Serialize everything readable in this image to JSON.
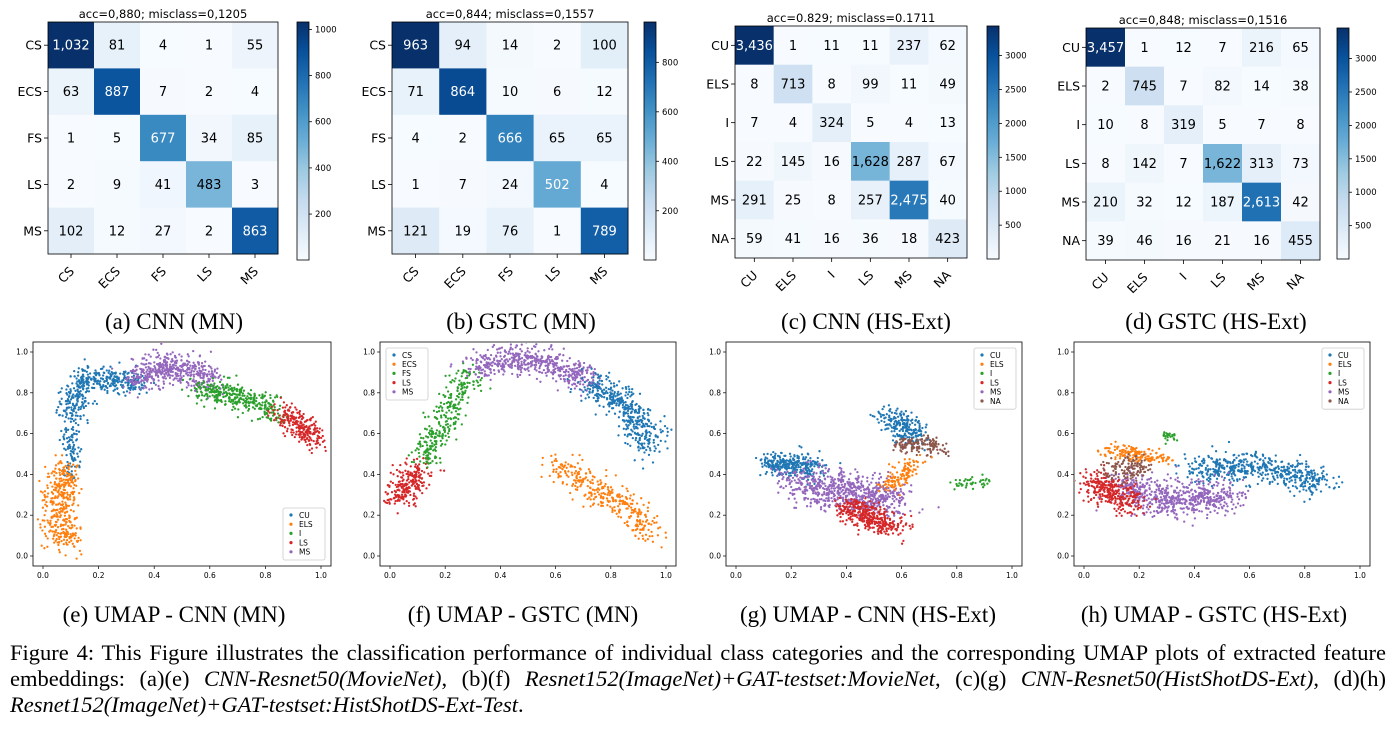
{
  "colors": {
    "cmap_low": "#f7fbff",
    "cmap_high": "#08306b",
    "series": [
      "#1f77b4",
      "#ff7f0e",
      "#2ca02c",
      "#d62728",
      "#9467bd",
      "#8c564b"
    ]
  },
  "confusion_matrices": [
    {
      "id": "a",
      "title": "acc=0,880; misclass=0,1205",
      "labels": [
        "CS",
        "ECS",
        "FS",
        "LS",
        "MS"
      ],
      "matrix": [
        [
          1032,
          81,
          4,
          1,
          55
        ],
        [
          63,
          887,
          7,
          2,
          4
        ],
        [
          1,
          5,
          677,
          34,
          85
        ],
        [
          2,
          9,
          41,
          483,
          3
        ],
        [
          102,
          12,
          27,
          2,
          863
        ]
      ],
      "cell_text": [
        [
          "1,032",
          "81",
          "4",
          "1",
          "55"
        ],
        [
          "63",
          "887",
          "7",
          "2",
          "4"
        ],
        [
          "1",
          "5",
          "677",
          "34",
          "85"
        ],
        [
          "2",
          "9",
          "41",
          "483",
          "3"
        ],
        [
          "102",
          "12",
          "27",
          "2",
          "863"
        ]
      ],
      "colorbar_ticks": [
        200,
        400,
        600,
        800,
        1000
      ],
      "vmin": 1,
      "vmax": 1032,
      "caption": "(a) CNN (MN)"
    },
    {
      "id": "b",
      "title": "acc=0,844; misclass=0,1557",
      "labels": [
        "CS",
        "ECS",
        "FS",
        "LS",
        "MS"
      ],
      "matrix": [
        [
          963,
          94,
          14,
          2,
          100
        ],
        [
          71,
          864,
          10,
          6,
          12
        ],
        [
          4,
          2,
          666,
          65,
          65
        ],
        [
          1,
          7,
          24,
          502,
          4
        ],
        [
          121,
          19,
          76,
          1,
          789
        ]
      ],
      "cell_text": [
        [
          "963",
          "94",
          "14",
          "2",
          "100"
        ],
        [
          "71",
          "864",
          "10",
          "6",
          "12"
        ],
        [
          "4",
          "2",
          "666",
          "65",
          "65"
        ],
        [
          "1",
          "7",
          "24",
          "502",
          "4"
        ],
        [
          "121",
          "19",
          "76",
          "1",
          "789"
        ]
      ],
      "colorbar_ticks": [
        200,
        400,
        600,
        800
      ],
      "vmin": 1,
      "vmax": 963,
      "caption": "(b) GSTC (MN)"
    },
    {
      "id": "c",
      "title": "acc=0.829; misclass=0.1711",
      "labels": [
        "CU",
        "ELS",
        "I",
        "LS",
        "MS",
        "NA"
      ],
      "matrix": [
        [
          3436,
          1,
          11,
          11,
          237,
          62
        ],
        [
          8,
          713,
          8,
          99,
          11,
          49
        ],
        [
          7,
          4,
          324,
          5,
          4,
          13
        ],
        [
          22,
          145,
          16,
          1628,
          287,
          67
        ],
        [
          291,
          25,
          8,
          257,
          2475,
          40
        ],
        [
          59,
          41,
          16,
          36,
          18,
          423
        ]
      ],
      "cell_text": [
        [
          "3,436",
          "1",
          "11",
          "11",
          "237",
          "62"
        ],
        [
          "8",
          "713",
          "8",
          "99",
          "11",
          "49"
        ],
        [
          "7",
          "4",
          "324",
          "5",
          "4",
          "13"
        ],
        [
          "22",
          "145",
          "16",
          "1,628",
          "287",
          "67"
        ],
        [
          "291",
          "25",
          "8",
          "257",
          "2,475",
          "40"
        ],
        [
          "59",
          "41",
          "16",
          "36",
          "18",
          "423"
        ]
      ],
      "colorbar_ticks": [
        500,
        1000,
        1500,
        2000,
        2500,
        3000
      ],
      "vmin": 1,
      "vmax": 3436,
      "caption": "(c) CNN (HS-Ext)"
    },
    {
      "id": "d",
      "title": "acc=0,848; misclass=0,1516",
      "labels": [
        "CU",
        "ELS",
        "I",
        "LS",
        "MS",
        "NA"
      ],
      "matrix": [
        [
          3457,
          1,
          12,
          7,
          216,
          65
        ],
        [
          2,
          745,
          7,
          82,
          14,
          38
        ],
        [
          10,
          8,
          319,
          5,
          7,
          8
        ],
        [
          8,
          142,
          7,
          1622,
          313,
          73
        ],
        [
          210,
          32,
          12,
          187,
          2613,
          42
        ],
        [
          39,
          46,
          16,
          21,
          16,
          455
        ]
      ],
      "cell_text": [
        [
          "3,457",
          "1",
          "12",
          "7",
          "216",
          "65"
        ],
        [
          "2",
          "745",
          "7",
          "82",
          "14",
          "38"
        ],
        [
          "10",
          "8",
          "319",
          "5",
          "7",
          "8"
        ],
        [
          "8",
          "142",
          "7",
          "1,622",
          "313",
          "73"
        ],
        [
          "210",
          "32",
          "12",
          "187",
          "2,613",
          "42"
        ],
        [
          "39",
          "46",
          "16",
          "21",
          "16",
          "455"
        ]
      ],
      "colorbar_ticks": [
        500,
        1000,
        1500,
        2000,
        2500,
        3000
      ],
      "vmin": 1,
      "vmax": 3457,
      "caption": "(d) GSTC (HS-Ext)"
    }
  ],
  "chart_data": [
    {
      "type": "scatter",
      "id": "e",
      "xlim": [
        0,
        1
      ],
      "ylim": [
        0,
        1
      ],
      "x_ticks": [
        "0.0",
        "0.2",
        "0.4",
        "0.6",
        "0.8",
        "1.0"
      ],
      "y_ticks": [
        "0.0",
        "0.2",
        "0.4",
        "0.6",
        "0.8",
        "1.0"
      ],
      "legend": [
        "CU",
        "ELS",
        "I",
        "LS",
        "MS"
      ],
      "legend_position": "lower-right",
      "clusters": [
        {
          "series": 0,
          "path": [
            [
              0.1,
              0.68
            ],
            [
              0.12,
              0.8
            ],
            [
              0.17,
              0.88
            ],
            [
              0.25,
              0.86
            ],
            [
              0.35,
              0.84
            ]
          ],
          "spread": 0.028,
          "n": 420
        },
        {
          "series": 0,
          "path": [
            [
              0.1,
              0.38
            ],
            [
              0.1,
              0.52
            ],
            [
              0.09,
              0.62
            ]
          ],
          "spread": 0.015,
          "n": 90
        },
        {
          "series": 1,
          "path": [
            [
              0.08,
              0.44
            ],
            [
              0.06,
              0.3
            ],
            [
              0.06,
              0.18
            ],
            [
              0.08,
              0.06
            ]
          ],
          "spread": 0.032,
          "n": 380
        },
        {
          "series": 4,
          "path": [
            [
              0.34,
              0.86
            ],
            [
              0.42,
              0.92
            ],
            [
              0.5,
              0.92
            ],
            [
              0.6,
              0.86
            ]
          ],
          "spread": 0.036,
          "n": 460
        },
        {
          "series": 2,
          "path": [
            [
              0.56,
              0.82
            ],
            [
              0.66,
              0.8
            ],
            [
              0.76,
              0.76
            ],
            [
              0.84,
              0.7
            ]
          ],
          "spread": 0.03,
          "n": 340
        },
        {
          "series": 3,
          "path": [
            [
              0.86,
              0.7
            ],
            [
              0.93,
              0.64
            ],
            [
              0.97,
              0.56
            ]
          ],
          "spread": 0.028,
          "n": 240
        }
      ],
      "caption": "(e) UMAP - CNN (MN)"
    },
    {
      "type": "scatter",
      "id": "f",
      "xlim": [
        0,
        1
      ],
      "ylim": [
        0,
        1
      ],
      "x_ticks": [
        "0.0",
        "0.2",
        "0.4",
        "0.6",
        "0.8",
        "1.0"
      ],
      "y_ticks": [
        "0.0",
        "0.2",
        "0.4",
        "0.6",
        "0.8",
        "1.0"
      ],
      "legend": [
        "CS",
        "ECS",
        "FS",
        "LS",
        "MS"
      ],
      "legend_position": "top-left",
      "clusters": [
        {
          "series": 3,
          "path": [
            [
              0.02,
              0.27
            ],
            [
              0.07,
              0.36
            ],
            [
              0.12,
              0.44
            ]
          ],
          "spread": 0.03,
          "n": 230
        },
        {
          "series": 2,
          "path": [
            [
              0.12,
              0.46
            ],
            [
              0.18,
              0.62
            ],
            [
              0.24,
              0.8
            ],
            [
              0.3,
              0.9
            ]
          ],
          "spread": 0.028,
          "n": 300
        },
        {
          "series": 4,
          "path": [
            [
              0.3,
              0.92
            ],
            [
              0.4,
              0.96
            ],
            [
              0.52,
              0.96
            ],
            [
              0.62,
              0.92
            ],
            [
              0.72,
              0.86
            ]
          ],
          "spread": 0.032,
          "n": 520
        },
        {
          "series": 0,
          "path": [
            [
              0.72,
              0.84
            ],
            [
              0.82,
              0.78
            ],
            [
              0.9,
              0.66
            ],
            [
              0.94,
              0.52
            ]
          ],
          "spread": 0.035,
          "n": 420
        },
        {
          "series": 1,
          "path": [
            [
              0.6,
              0.46
            ],
            [
              0.7,
              0.36
            ],
            [
              0.84,
              0.26
            ],
            [
              0.96,
              0.1
            ]
          ],
          "spread": 0.034,
          "n": 330
        }
      ],
      "caption": "(f) UMAP - GSTC (MN)"
    },
    {
      "type": "scatter",
      "id": "g",
      "xlim": [
        0,
        1
      ],
      "ylim": [
        0,
        1
      ],
      "x_ticks": [
        "0.0",
        "0.2",
        "0.4",
        "0.6",
        "0.8",
        "1.0"
      ],
      "y_ticks": [
        "0.0",
        "0.2",
        "0.4",
        "0.6",
        "0.8",
        "1.0"
      ],
      "legend": [
        "CU",
        "ELS",
        "I",
        "LS",
        "MS",
        "NA"
      ],
      "legend_position": "top-right",
      "clusters": [
        {
          "series": 0,
          "path": [
            [
              0.12,
              0.46
            ],
            [
              0.2,
              0.44
            ],
            [
              0.3,
              0.43
            ]
          ],
          "spread": 0.028,
          "n": 300
        },
        {
          "series": 0,
          "path": [
            [
              0.55,
              0.7
            ],
            [
              0.6,
              0.64
            ],
            [
              0.66,
              0.58
            ]
          ],
          "spread": 0.03,
          "n": 220
        },
        {
          "series": 4,
          "path": [
            [
              0.22,
              0.36
            ],
            [
              0.34,
              0.32
            ],
            [
              0.46,
              0.3
            ],
            [
              0.58,
              0.27
            ]
          ],
          "spread": 0.045,
          "n": 700
        },
        {
          "series": 3,
          "path": [
            [
              0.4,
              0.24
            ],
            [
              0.5,
              0.18
            ],
            [
              0.58,
              0.14
            ]
          ],
          "spread": 0.032,
          "n": 360
        },
        {
          "series": 5,
          "path": [
            [
              0.58,
              0.54
            ],
            [
              0.66,
              0.55
            ],
            [
              0.74,
              0.52
            ]
          ],
          "spread": 0.02,
          "n": 140
        },
        {
          "series": 1,
          "path": [
            [
              0.55,
              0.34
            ],
            [
              0.6,
              0.4
            ],
            [
              0.66,
              0.46
            ]
          ],
          "spread": 0.022,
          "n": 120
        },
        {
          "series": 2,
          "path": [
            [
              0.78,
              0.35
            ],
            [
              0.86,
              0.36
            ],
            [
              0.92,
              0.37
            ]
          ],
          "spread": 0.012,
          "n": 40
        }
      ],
      "caption": "(g) UMAP - CNN (HS-Ext)"
    },
    {
      "type": "scatter",
      "id": "h",
      "xlim": [
        0,
        1
      ],
      "ylim": [
        0,
        1
      ],
      "x_ticks": [
        "0.0",
        "0.2",
        "0.4",
        "0.6",
        "0.8",
        "1.0"
      ],
      "y_ticks": [
        "0.0",
        "0.2",
        "0.4",
        "0.6",
        "0.8",
        "1.0"
      ],
      "legend": [
        "CU",
        "ELS",
        "I",
        "LS",
        "MS",
        "NA"
      ],
      "legend_position": "top-right",
      "clusters": [
        {
          "series": 0,
          "path": [
            [
              0.4,
              0.42
            ],
            [
              0.55,
              0.44
            ],
            [
              0.7,
              0.42
            ],
            [
              0.86,
              0.36
            ]
          ],
          "spread": 0.035,
          "n": 520
        },
        {
          "series": 4,
          "path": [
            [
              0.14,
              0.34
            ],
            [
              0.26,
              0.28
            ],
            [
              0.4,
              0.28
            ],
            [
              0.54,
              0.3
            ]
          ],
          "spread": 0.042,
          "n": 620
        },
        {
          "series": 3,
          "path": [
            [
              0.04,
              0.36
            ],
            [
              0.1,
              0.3
            ],
            [
              0.18,
              0.26
            ]
          ],
          "spread": 0.035,
          "n": 300
        },
        {
          "series": 1,
          "path": [
            [
              0.08,
              0.52
            ],
            [
              0.2,
              0.5
            ],
            [
              0.3,
              0.47
            ]
          ],
          "spread": 0.018,
          "n": 150
        },
        {
          "series": 5,
          "path": [
            [
              0.1,
              0.42
            ],
            [
              0.22,
              0.44
            ]
          ],
          "spread": 0.03,
          "n": 120
        },
        {
          "series": 2,
          "path": [
            [
              0.3,
              0.6
            ],
            [
              0.32,
              0.58
            ]
          ],
          "spread": 0.01,
          "n": 30
        }
      ],
      "caption": "(h) UMAP - GSTC (HS-Ext)"
    }
  ],
  "figure_caption": {
    "label": "Figure 4:",
    "text_plain": " This Figure illustrates the classification performance of individual class categories and the corresponding UMAP plots of extracted feature embeddings: (a)(e) ",
    "it1": "CNN-Resnet50(MovieNet)",
    "sep1": ", (b)(f) ",
    "it2": "Resnet152(ImageNet)+GAT-testset:MovieNet",
    "sep2": ", (c)(g) ",
    "it3": "CNN-Resnet50(HistShotDS-Ext)",
    "sep3": ", (d)(h) ",
    "it4": "Resnet152(ImageNet)+GAT-testset:HistShotDS-Ext-Test",
    "end": "."
  }
}
